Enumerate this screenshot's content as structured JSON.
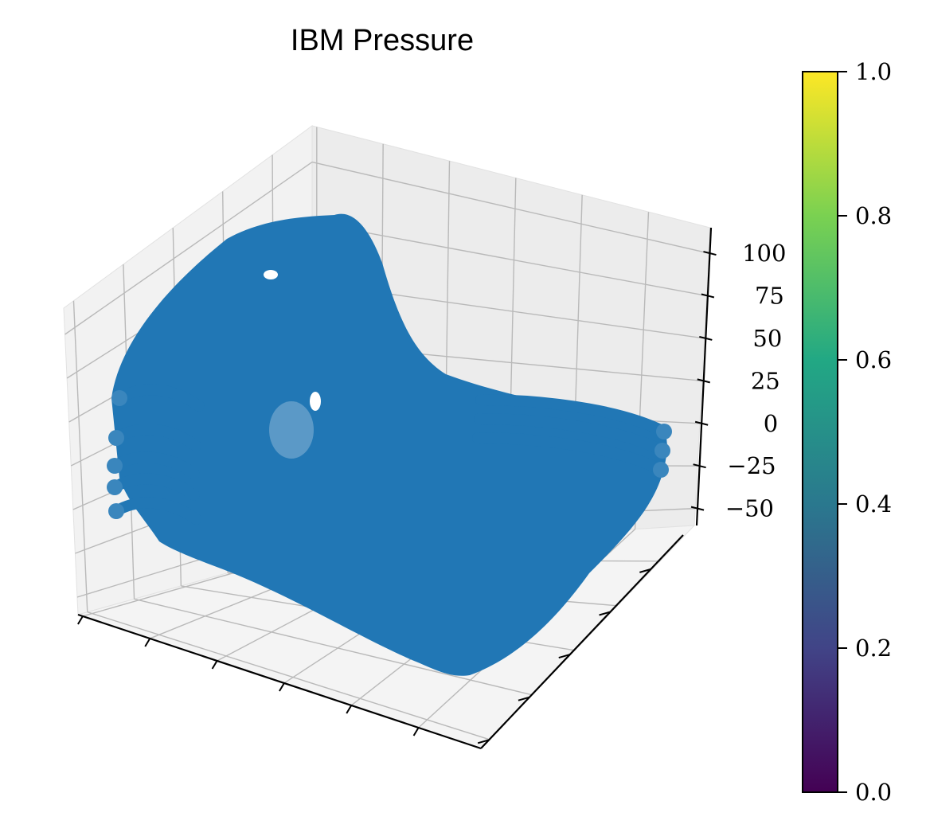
{
  "chart_data": {
    "type": "scatter",
    "projection": "3d",
    "title": "IBM Pressure",
    "xlabel": "",
    "ylabel": "",
    "zlabel": "",
    "z_ticks": [
      -50,
      -25,
      0,
      25,
      50,
      75,
      100
    ],
    "z_tick_labels": [
      "−50",
      "−25",
      "0",
      "25",
      "50",
      "75",
      "100"
    ],
    "x_tick_count": 6,
    "y_tick_count": 5,
    "grid": true,
    "marker_color": "#2177b5",
    "colorbar": {
      "colormap": "viridis",
      "range": [
        0.0,
        1.0
      ],
      "ticks": [
        0.0,
        0.2,
        0.4,
        0.6,
        0.8,
        1.0
      ],
      "tick_labels": [
        "0.0",
        "0.2",
        "0.4",
        "0.6",
        "0.8",
        "1.0"
      ],
      "colors": [
        "#440154",
        "#414487",
        "#2a788e",
        "#22a884",
        "#7ad151",
        "#fde725"
      ]
    }
  }
}
